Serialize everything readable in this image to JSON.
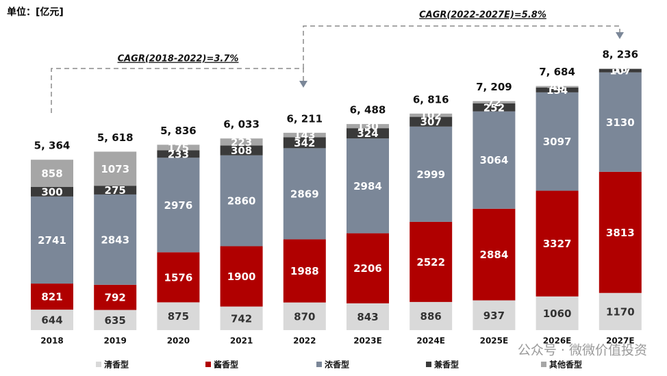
{
  "chart_data": {
    "type": "stacked-bar",
    "unit_label": "单位：[亿元]",
    "categories": [
      "2018",
      "2019",
      "2020",
      "2021",
      "2022",
      "2023E",
      "2024E",
      "2025E",
      "2026E",
      "2027E"
    ],
    "series": [
      {
        "name": "清香型",
        "color": "#d9d9d9",
        "values": [
          644,
          635,
          875,
          742,
          870,
          843,
          886,
          937,
          1060,
          1170
        ]
      },
      {
        "name": "酱香型",
        "color": "#b00000",
        "values": [
          821,
          792,
          1576,
          1900,
          1988,
          2206,
          2522,
          2884,
          3327,
          3813
        ]
      },
      {
        "name": "浓香型",
        "color": "#7b8798",
        "values": [
          2741,
          2843,
          2976,
          2860,
          2869,
          2984,
          2999,
          3064,
          3097,
          3130
        ]
      },
      {
        "name": "兼香型",
        "color": "#3a3a3a",
        "values": [
          300,
          275,
          233,
          308,
          342,
          324,
          307,
          252,
          154,
          107
        ]
      },
      {
        "name": "其他香型",
        "color": "#a6a6a6",
        "values": [
          858,
          1073,
          175,
          223,
          143,
          130,
          102,
          72,
          46,
          16
        ]
      }
    ],
    "totals": [
      5364,
      5618,
      5836,
      6033,
      6211,
      6488,
      6816,
      7209,
      7684,
      8236
    ],
    "total_labels": [
      "5, 364",
      "5, 618",
      "5, 836",
      "6, 033",
      "6, 211",
      "6, 488",
      "6, 816",
      "7, 209",
      "7, 684",
      "8, 236"
    ],
    "annotations": [
      "CAGR(2018-2022)=3.7%",
      "CAGR(2022-2027E)=5.8%"
    ],
    "watermark": "公众号 · 微微价值投资"
  }
}
